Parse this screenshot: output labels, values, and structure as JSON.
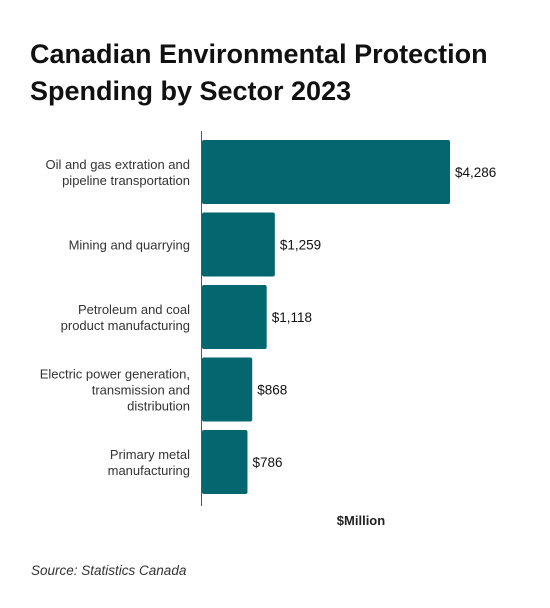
{
  "title_line1": "Canadian Environmental Protection",
  "title_line2": "Spending by Sector 2023",
  "source": "Source: Statistics Canada",
  "chart_data": {
    "type": "bar",
    "orientation": "horizontal",
    "categories": [
      [
        "Oil and gas extration and",
        "pipeline transportation"
      ],
      [
        "Mining and quarrying"
      ],
      [
        "Petroleum and coal",
        "product manufacturing"
      ],
      [
        "Electric power generation,",
        "transmission and",
        "distribution"
      ],
      [
        "Primary metal",
        "manufacturing"
      ]
    ],
    "values": [
      4286,
      1259,
      1118,
      868,
      786
    ],
    "value_labels": [
      "$4,286",
      "$1,259",
      "$1,118",
      "$868",
      "$786"
    ],
    "xlabel": "$Million",
    "xlim": [
      0,
      5000
    ],
    "grid": false,
    "bar_color": "#04666f"
  }
}
